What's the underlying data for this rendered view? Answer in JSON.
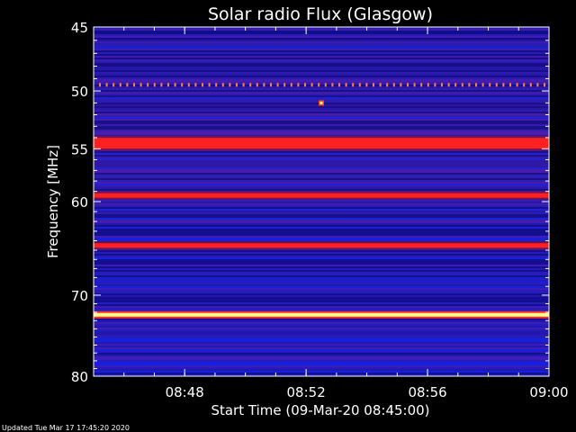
{
  "footer": {
    "updated": "Updated Tue Mar 17 17:45:20 2020"
  },
  "colors": {
    "background": "#000000",
    "base": "#2a1fc8",
    "mid": "#5a1aa8",
    "red": "#ff2020",
    "yellow": "#ffff80",
    "text": "#ffffff"
  },
  "chart_data": {
    "type": "heatmap",
    "title": "Solar radio Flux (Glasgow)",
    "xlabel": "Start Time (09-Mar-20 08:45:00)",
    "ylabel": "Frequency [MHz]",
    "xlim": [
      "08:45",
      "09:00"
    ],
    "ylim": [
      45,
      80
    ],
    "y_scale": "log",
    "y_inverted": true,
    "xticks": [
      "08:48",
      "08:52",
      "08:56",
      "09:00"
    ],
    "yticks": [
      45,
      50,
      55,
      60,
      70,
      80
    ],
    "bands": [
      {
        "freq_mhz": 49.5,
        "intensity": "red-yellow dotted"
      },
      {
        "freq_mhz": 54.5,
        "intensity": "red"
      },
      {
        "freq_mhz": 59.4,
        "intensity": "red"
      },
      {
        "freq_mhz": 64.5,
        "intensity": "red"
      },
      {
        "freq_mhz": 72.3,
        "intensity": "yellow"
      }
    ],
    "burst": {
      "time": "08:52:30",
      "freq_mhz": 51
    }
  }
}
